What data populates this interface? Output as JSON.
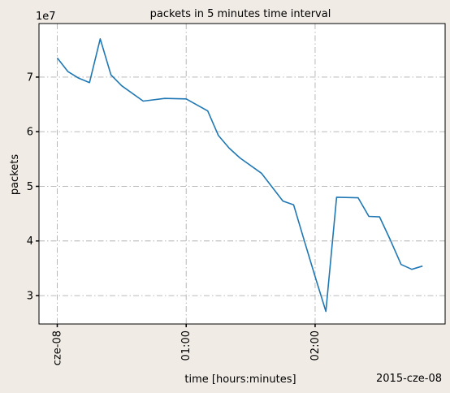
{
  "chart_data": {
    "type": "line",
    "title": "packets in 5 minutes time interval",
    "xlabel": "time [hours:minutes]",
    "ylabel": "packets",
    "y_offset_label": "1e7",
    "date_label": "2015-cze-08",
    "x_tick_labels": [
      "cze-08",
      "01:00",
      "02:00"
    ],
    "x_tick_minutes": [
      0,
      60,
      120
    ],
    "y_tick_labels": [
      "3",
      "4",
      "5",
      "6",
      "7"
    ],
    "y_tick_values": [
      30000000,
      40000000,
      50000000,
      60000000,
      70000000
    ],
    "xlim_minutes": [
      -8.5,
      180.5
    ],
    "ylim": [
      24800000,
      79800000
    ],
    "grid": true,
    "series_color": "#1f77b4",
    "series": [
      {
        "x_minutes": [
          0,
          5,
          10,
          15,
          20,
          25,
          30,
          40,
          50,
          60,
          65,
          70,
          75,
          80,
          85,
          95,
          105,
          110,
          115,
          120,
          125,
          130,
          140,
          145,
          150,
          155,
          160,
          165,
          170
        ],
        "values": [
          73500000,
          71000000,
          69800000,
          69000000,
          77000000,
          70400000,
          68400000,
          65600000,
          66100000,
          66000000,
          64900000,
          63800000,
          59300000,
          57000000,
          55200000,
          52400000,
          47300000,
          46600000,
          40000000,
          33500000,
          27100000,
          48000000,
          47900000,
          44500000,
          44400000,
          40200000,
          35700000,
          34800000,
          35400000
        ]
      }
    ]
  }
}
